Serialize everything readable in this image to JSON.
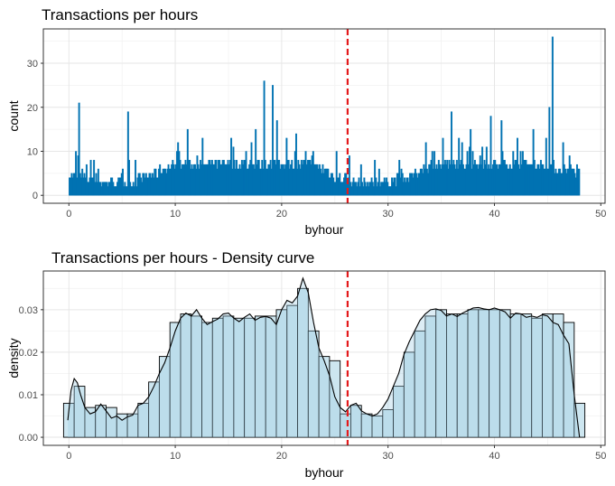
{
  "chart_data": [
    {
      "type": "bar",
      "title": "Transactions per hours",
      "xlabel": "byhour",
      "ylabel": "count",
      "xlim": [
        -2.4,
        50.4
      ],
      "ylim": [
        -1.8,
        37.8
      ],
      "x_ticks": [
        0,
        10,
        20,
        30,
        40,
        50
      ],
      "y_ticks": [
        0,
        10,
        20,
        30
      ],
      "grid": true,
      "bar_color": "#0072B2",
      "vline": {
        "x": 26.2,
        "color": "#E41A1C",
        "style": "dashed"
      },
      "bin_width": 0.1,
      "x_start": 0.0,
      "x_end": 48.0,
      "baseline_profile": [
        [
          0,
          5
        ],
        [
          1,
          4
        ],
        [
          2,
          4
        ],
        [
          3,
          3
        ],
        [
          4,
          3
        ],
        [
          5,
          3
        ],
        [
          6,
          3
        ],
        [
          7,
          4
        ],
        [
          8,
          5
        ],
        [
          9,
          6
        ],
        [
          10,
          7
        ],
        [
          14,
          7
        ],
        [
          18,
          7
        ],
        [
          20,
          7
        ],
        [
          22,
          7
        ],
        [
          24,
          6
        ],
        [
          25,
          4
        ],
        [
          26,
          4
        ],
        [
          27,
          3
        ],
        [
          28,
          3
        ],
        [
          29,
          3
        ],
        [
          30,
          3
        ],
        [
          31,
          4
        ],
        [
          32,
          4
        ],
        [
          33,
          6
        ],
        [
          34,
          7
        ],
        [
          35,
          7
        ],
        [
          40,
          7
        ],
        [
          45,
          7
        ],
        [
          46,
          6
        ],
        [
          47,
          6
        ],
        [
          48,
          5
        ]
      ],
      "spikes": [
        [
          0.55,
          10
        ],
        [
          0.95,
          21
        ],
        [
          1.2,
          6
        ],
        [
          1.6,
          7
        ],
        [
          2.7,
          6
        ],
        [
          5.5,
          19
        ],
        [
          6.2,
          8
        ],
        [
          10.2,
          12
        ],
        [
          11.1,
          15
        ],
        [
          12.5,
          13
        ],
        [
          15.2,
          13
        ],
        [
          17.5,
          15
        ],
        [
          18.3,
          26
        ],
        [
          19.1,
          25
        ],
        [
          19.5,
          17
        ],
        [
          20.4,
          13
        ],
        [
          21.3,
          14
        ],
        [
          22.2,
          10
        ],
        [
          22.8,
          9
        ],
        [
          25.1,
          10
        ],
        [
          26.3,
          9
        ],
        [
          27.4,
          7
        ],
        [
          28.7,
          8
        ],
        [
          29.1,
          6
        ],
        [
          31.2,
          6
        ],
        [
          33.5,
          12
        ],
        [
          34.1,
          10
        ],
        [
          35.1,
          13
        ],
        [
          35.9,
          19
        ],
        [
          37.7,
          15
        ],
        [
          38.8,
          11
        ],
        [
          39.6,
          18
        ],
        [
          40.6,
          17
        ],
        [
          42.1,
          13
        ],
        [
          43.6,
          15
        ],
        [
          45.1,
          20
        ],
        [
          45.35,
          36
        ],
        [
          46.4,
          12
        ],
        [
          47.0,
          9
        ],
        [
          47.7,
          7
        ]
      ]
    },
    {
      "type": "area",
      "title": "Transactions per hours - Density curve",
      "xlabel": "byhour",
      "ylabel": "density",
      "xlim": [
        -2.4,
        50.4
      ],
      "ylim": [
        -0.0019,
        0.0391
      ],
      "x_ticks": [
        0,
        10,
        20,
        30,
        40,
        50
      ],
      "y_ticks": [
        0.0,
        0.01,
        0.02,
        0.03
      ],
      "y_tick_labels": [
        "0.00",
        "0.01",
        "0.02",
        "0.03"
      ],
      "grid": true,
      "histogram_fill": "#CDE6F0",
      "histogram_stroke": "#000000",
      "vline": {
        "x": 26.2,
        "color": "#E41A1C",
        "style": "dashed"
      },
      "histogram": {
        "bin_width": 1,
        "x": [
          0,
          1,
          2,
          3,
          4,
          5,
          6,
          7,
          8,
          9,
          10,
          11,
          12,
          13,
          14,
          15,
          16,
          17,
          18,
          19,
          20,
          21,
          22,
          23,
          24,
          25,
          26,
          27,
          28,
          29,
          30,
          31,
          32,
          33,
          34,
          35,
          36,
          37,
          38,
          39,
          40,
          41,
          42,
          43,
          44,
          45,
          46,
          47,
          48
        ],
        "density": [
          0.008,
          0.012,
          0.007,
          0.0075,
          0.007,
          0.0055,
          0.0055,
          0.008,
          0.013,
          0.019,
          0.027,
          0.029,
          0.0285,
          0.027,
          0.028,
          0.0285,
          0.028,
          0.028,
          0.0285,
          0.0285,
          0.03,
          0.031,
          0.035,
          0.025,
          0.019,
          0.018,
          0.0055,
          0.0075,
          0.0055,
          0.005,
          0.0065,
          0.012,
          0.02,
          0.025,
          0.0285,
          0.03,
          0.029,
          0.029,
          0.03,
          0.03,
          0.03,
          0.03,
          0.029,
          0.029,
          0.028,
          0.029,
          0.029,
          0.027,
          0.008
        ]
      },
      "density_curve": {
        "x": [
          -0.1,
          0.2,
          0.5,
          0.8,
          1.1,
          1.5,
          2.0,
          2.5,
          3.0,
          3.5,
          4.0,
          4.5,
          5.0,
          5.5,
          6.0,
          6.5,
          7.0,
          7.5,
          8.0,
          8.5,
          9.0,
          9.5,
          10.0,
          10.5,
          11.0,
          11.5,
          12.0,
          12.5,
          13.0,
          13.5,
          14.0,
          14.5,
          15.0,
          15.5,
          16.0,
          16.5,
          17.0,
          17.5,
          18.0,
          18.5,
          19.0,
          19.5,
          20.0,
          20.5,
          21.0,
          21.5,
          22.0,
          22.5,
          23.0,
          23.5,
          24.0,
          24.5,
          25.0,
          25.5,
          26.0,
          26.5,
          27.0,
          27.5,
          28.0,
          28.5,
          29.0,
          29.5,
          30.0,
          30.5,
          31.0,
          31.5,
          32.0,
          32.5,
          33.0,
          33.5,
          34.0,
          34.5,
          35.0,
          35.5,
          36.0,
          36.5,
          37.0,
          37.5,
          38.0,
          38.5,
          39.0,
          39.5,
          40.0,
          40.5,
          41.0,
          41.5,
          42.0,
          42.5,
          43.0,
          43.5,
          44.0,
          44.5,
          45.0,
          45.5,
          46.0,
          46.5,
          47.0,
          47.5,
          48.0
        ],
        "y": [
          0.004,
          0.011,
          0.0138,
          0.0128,
          0.01,
          0.007,
          0.0055,
          0.006,
          0.0078,
          0.0062,
          0.0045,
          0.005,
          0.004,
          0.0048,
          0.0052,
          0.0075,
          0.008,
          0.0095,
          0.012,
          0.015,
          0.0175,
          0.021,
          0.025,
          0.028,
          0.0292,
          0.0285,
          0.03,
          0.028,
          0.0265,
          0.0272,
          0.0278,
          0.029,
          0.0292,
          0.028,
          0.0272,
          0.0282,
          0.029,
          0.0275,
          0.0282,
          0.0284,
          0.028,
          0.0265,
          0.03,
          0.0322,
          0.0316,
          0.0332,
          0.0374,
          0.034,
          0.027,
          0.021,
          0.018,
          0.0145,
          0.0095,
          0.007,
          0.006,
          0.0075,
          0.008,
          0.0062,
          0.0055,
          0.005,
          0.0055,
          0.007,
          0.009,
          0.012,
          0.015,
          0.0195,
          0.0225,
          0.025,
          0.0275,
          0.029,
          0.03,
          0.0302,
          0.0298,
          0.0285,
          0.029,
          0.0284,
          0.0292,
          0.0298,
          0.0304,
          0.0305,
          0.0302,
          0.03,
          0.0304,
          0.03,
          0.0295,
          0.028,
          0.0292,
          0.029,
          0.0282,
          0.0285,
          0.0282,
          0.0288,
          0.0285,
          0.027,
          0.0265,
          0.024,
          0.022,
          0.01,
          0.0
        ]
      }
    }
  ]
}
